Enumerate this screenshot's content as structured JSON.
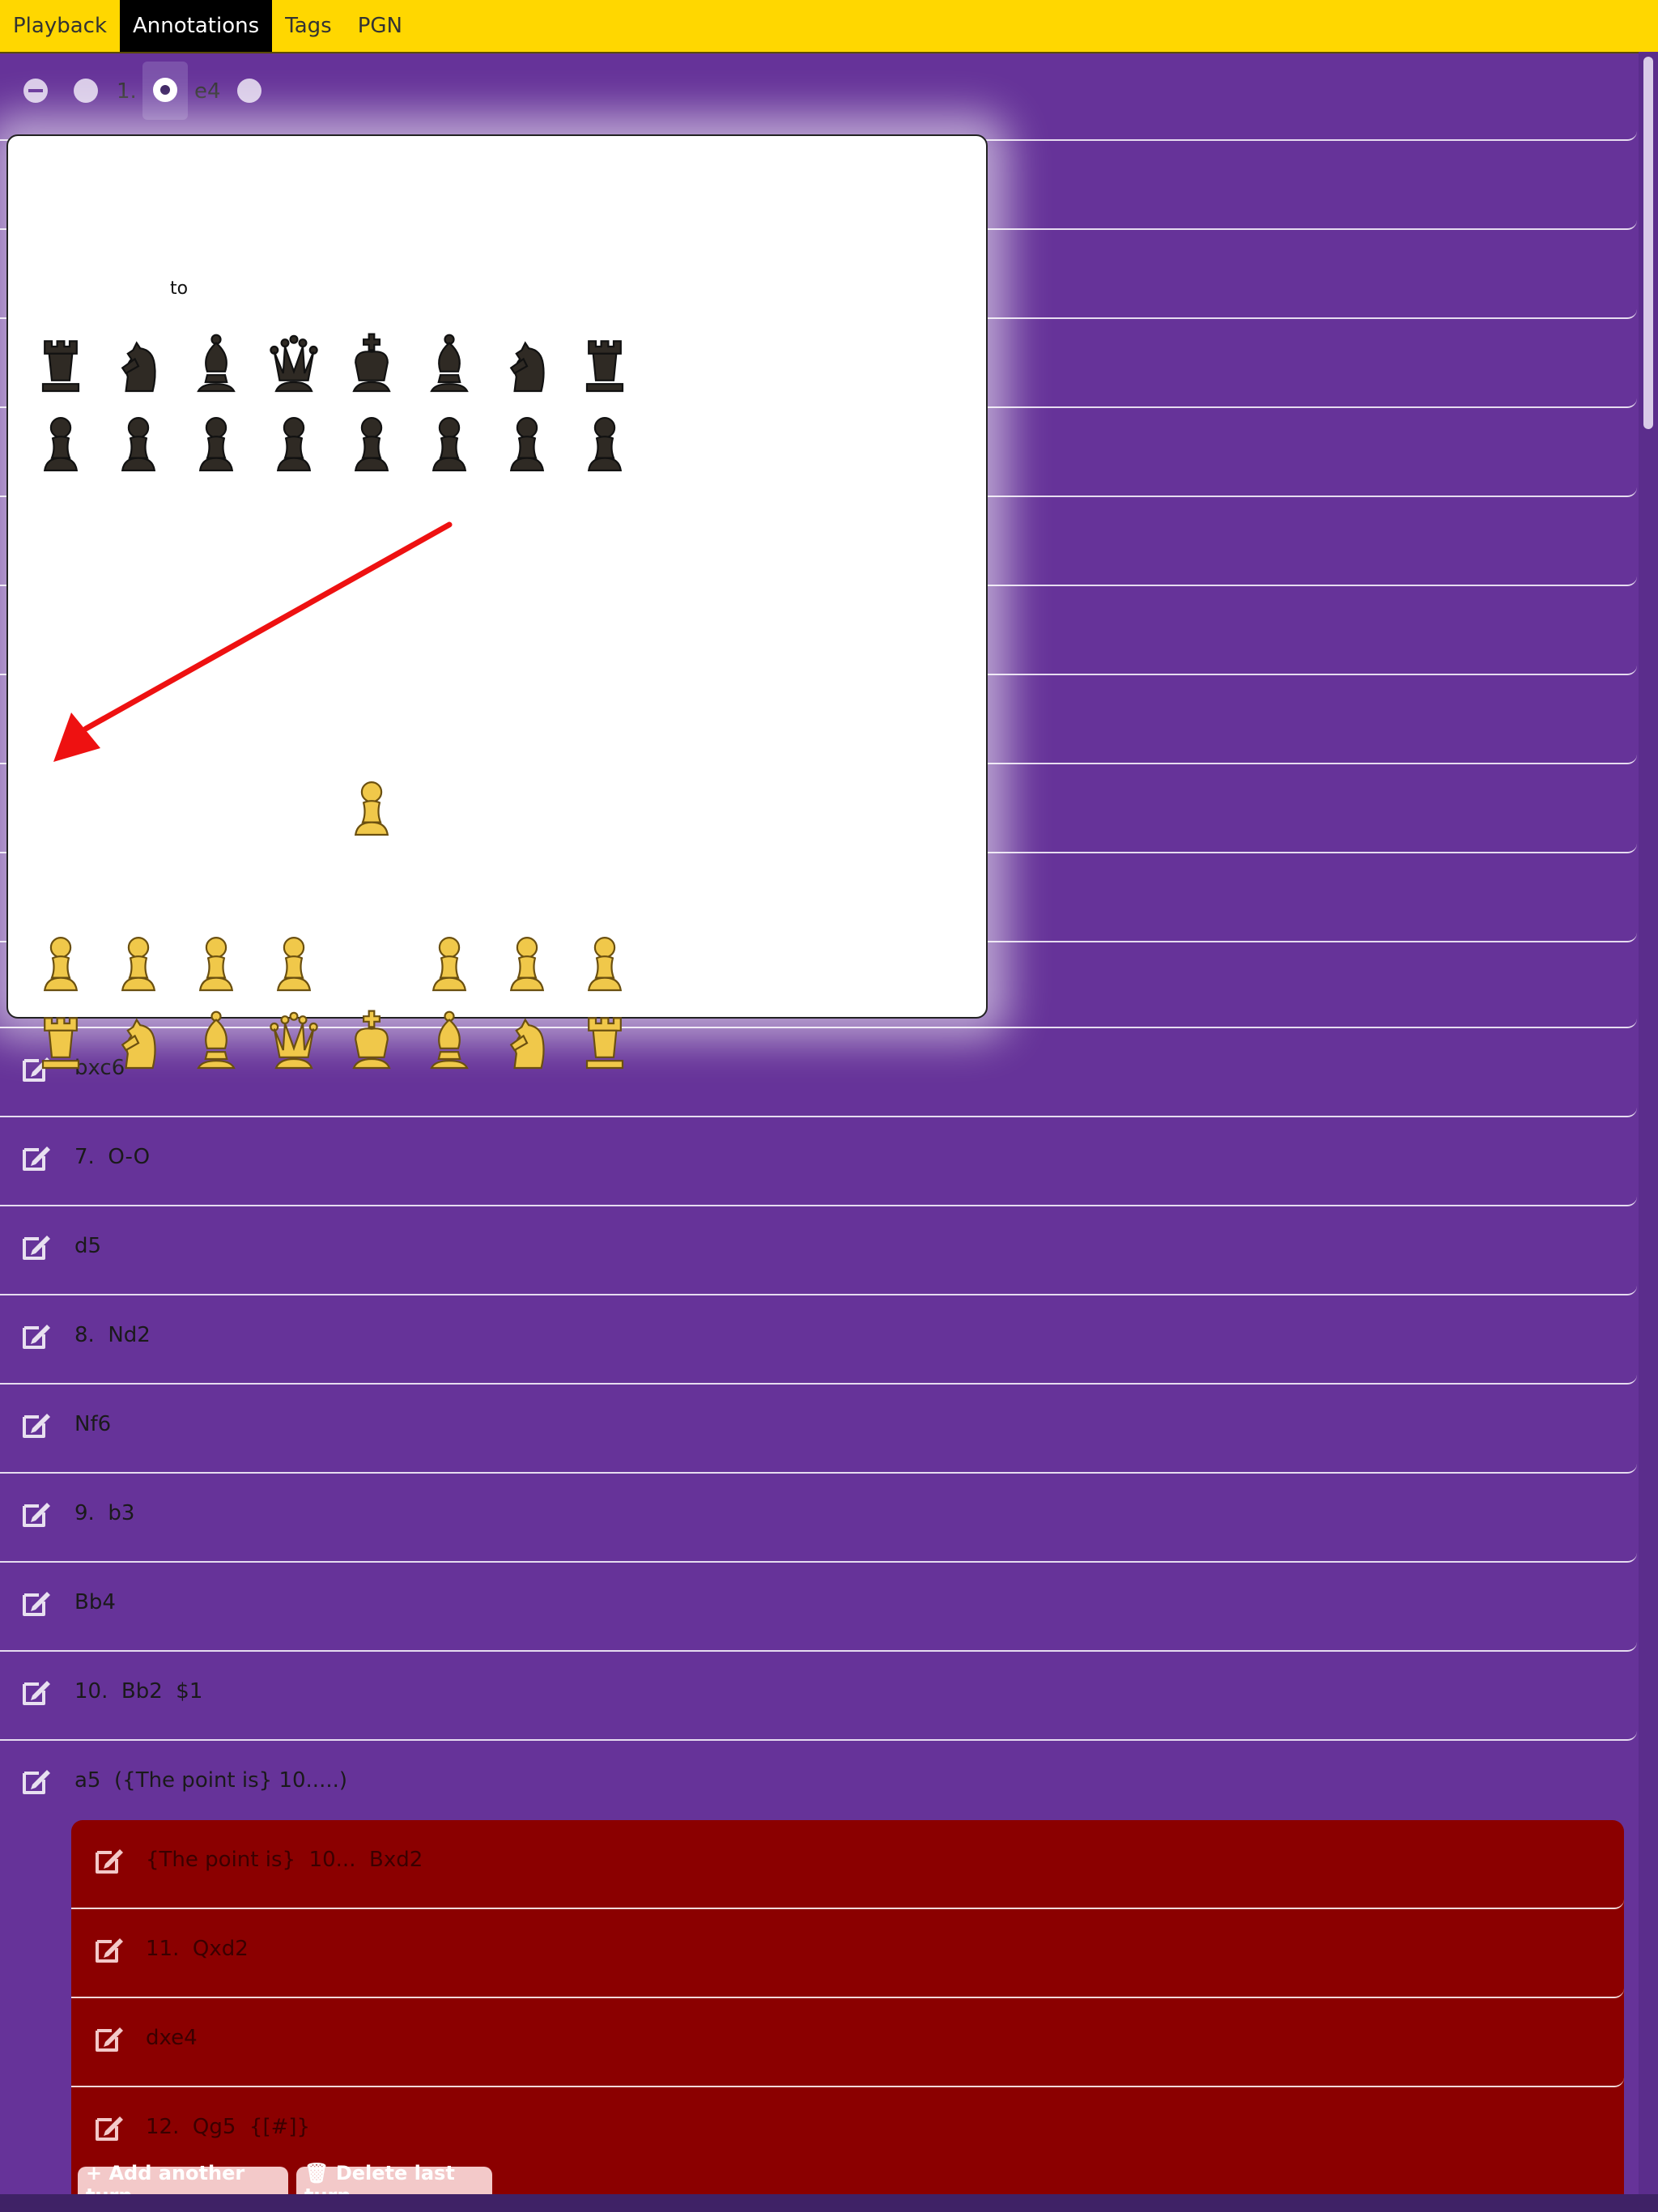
{
  "nav": {
    "tabs": [
      "Playback",
      "Annotations",
      "Tags",
      "PGN"
    ],
    "active": 1
  },
  "toolbar": {
    "move_number": "1.",
    "move": "e4"
  },
  "popup": {
    "to_label": "to",
    "arrow_color": "#ee1111"
  },
  "moves": [
    "bxc6",
    "7.  O-O",
    "d5",
    "8.  Nd2",
    "Nf6",
    "9.  b3",
    "Bb4",
    "10.  Bb2  $1",
    "a5  ({The point is} 10.....)"
  ],
  "variation": {
    "moves": [
      "{The point is}  10...  Bxd2",
      "11.  Qxd2",
      "dxe4",
      "12.  Qg5  {[#]}"
    ],
    "add_button": "+ Add another turn",
    "delete_button": "🗑 Delete last turn"
  },
  "colors": {
    "background": "#663399",
    "nav": "#ffd700",
    "variation": "#8b0000"
  }
}
